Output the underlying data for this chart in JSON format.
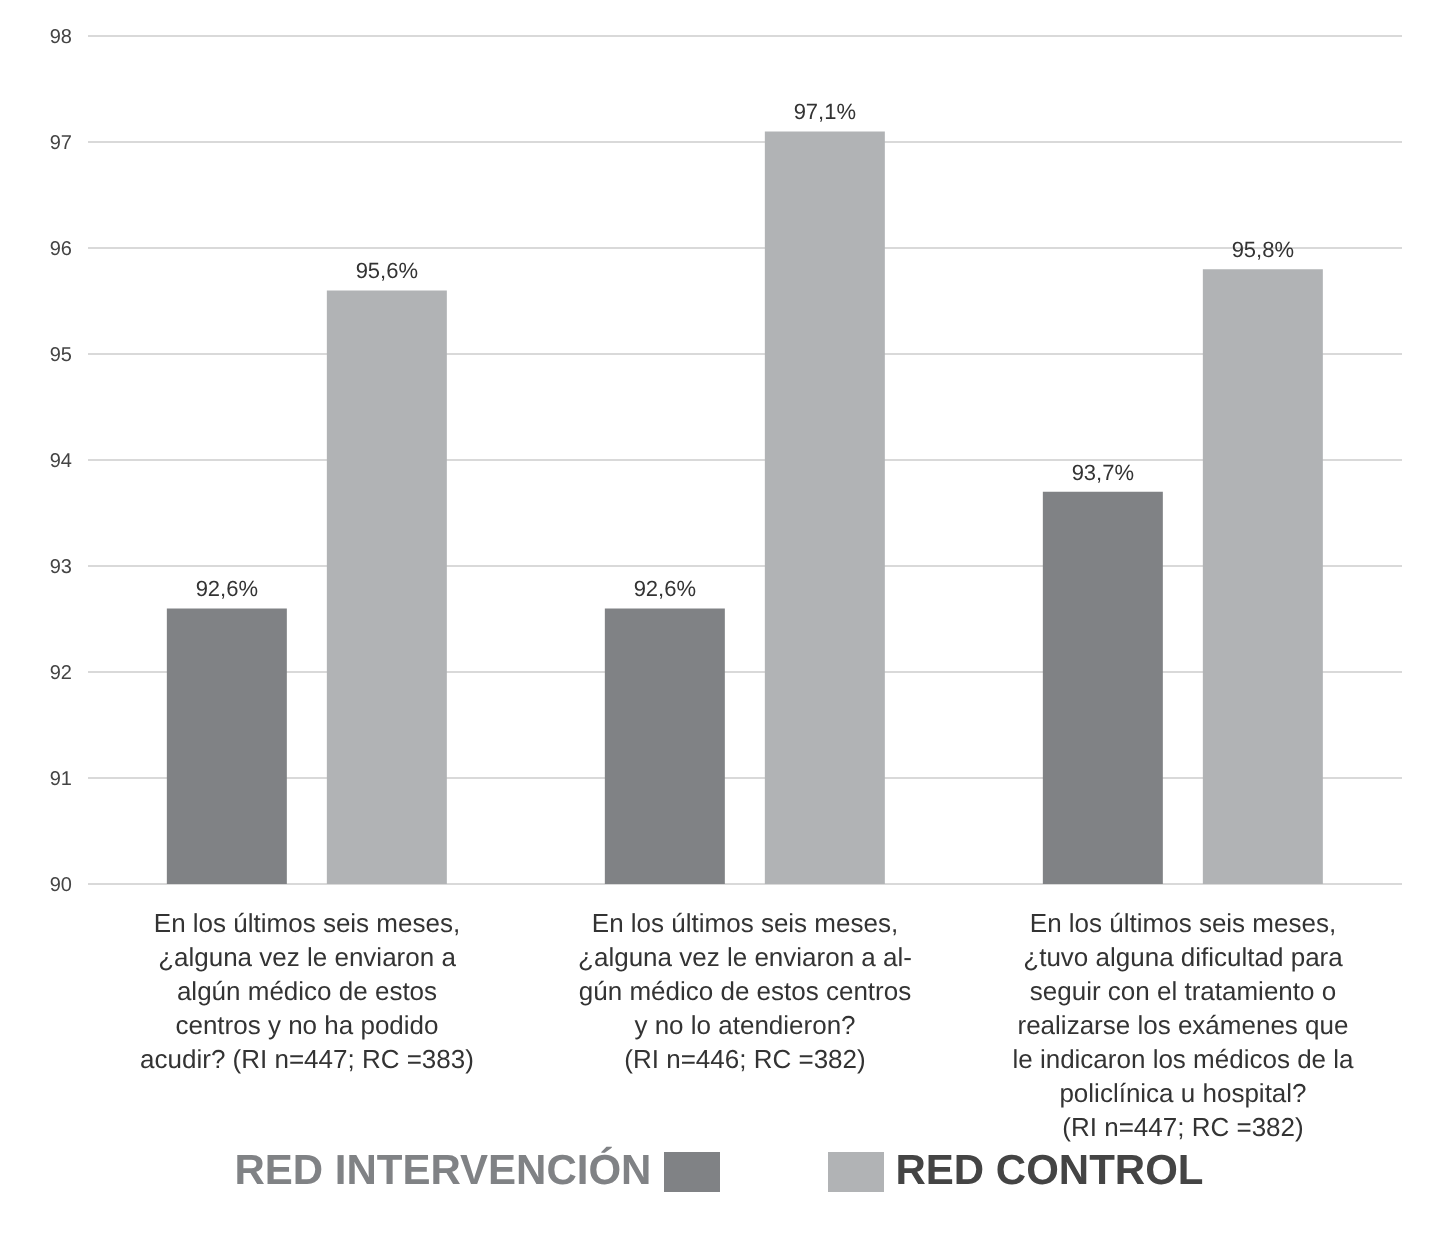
{
  "chart_data": {
    "type": "bar",
    "categories": [
      "En los últimos seis meses,\n¿alguna vez le enviaron a\nalgún médico de estos\ncentros y no ha podido\nacudir? (RI n=447; RC =383)",
      "En los últimos seis meses,\n¿alguna vez le enviaron a al-\ngún médico de estos centros\ny no lo  atendieron?\n(RI n=446; RC =382)",
      "En los últimos seis meses,\n¿tuvo alguna dificultad para\nseguir con el tratamiento o\nrealizarse los  exámenes que\nle indicaron los médicos de la\npoliclínica u hospital?\n(RI n=447; RC =382)"
    ],
    "series": [
      {
        "name": "RED INTERVENCIÓN",
        "color": "#808285",
        "values": [
          92.6,
          92.6,
          93.7
        ],
        "value_labels": [
          "92,6%",
          "92,6%",
          "93,7%"
        ]
      },
      {
        "name": "RED CONTROL",
        "color": "#b1b3b5",
        "values": [
          95.6,
          97.1,
          95.8
        ],
        "value_labels": [
          "95,6%",
          "97,1%",
          "95,8%"
        ]
      }
    ],
    "ylim": [
      90,
      98
    ],
    "yticks": [
      90,
      91,
      92,
      93,
      94,
      95,
      96,
      97,
      98
    ],
    "grid": "y",
    "legend": "bottom"
  }
}
